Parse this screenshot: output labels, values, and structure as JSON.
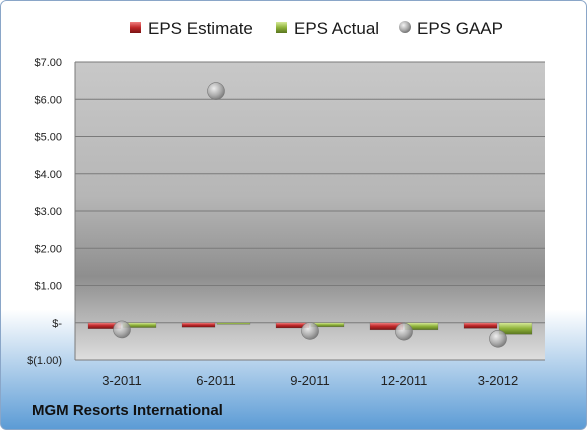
{
  "company": "MGM Resorts International",
  "colors": {
    "estimate": "#c0282a",
    "actual": "#8fb33a",
    "gaap": "#9a9a9a",
    "frame_bg_top": "#ffffff",
    "frame_bg_bottom": "#5b9bd5"
  },
  "chart_data": {
    "type": "bar",
    "categories": [
      "3-2011",
      "6-2011",
      "9-2011",
      "12-2011",
      "3-2012"
    ],
    "series": [
      {
        "name": "EPS Estimate",
        "kind": "bar",
        "values": [
          -0.16,
          -0.12,
          -0.14,
          -0.19,
          -0.15
        ]
      },
      {
        "name": "EPS Actual",
        "kind": "bar",
        "values": [
          -0.13,
          -0.02,
          -0.11,
          -0.19,
          -0.31
        ]
      },
      {
        "name": "EPS GAAP",
        "kind": "scatter",
        "values": [
          -0.18,
          6.22,
          -0.22,
          -0.24,
          -0.43
        ]
      }
    ],
    "yticks": [
      {
        "value": 7,
        "label": "$7.00"
      },
      {
        "value": 6,
        "label": "$6.00"
      },
      {
        "value": 5,
        "label": "$5.00"
      },
      {
        "value": 4,
        "label": "$4.00"
      },
      {
        "value": 3,
        "label": "$3.00"
      },
      {
        "value": 2,
        "label": "$2.00"
      },
      {
        "value": 1,
        "label": "$1.00"
      },
      {
        "value": 0,
        "label": "$-"
      },
      {
        "value": -1,
        "label": "$(1.00)"
      }
    ],
    "ylim": [
      -1,
      7
    ],
    "grid": true,
    "legend_position": "top"
  }
}
